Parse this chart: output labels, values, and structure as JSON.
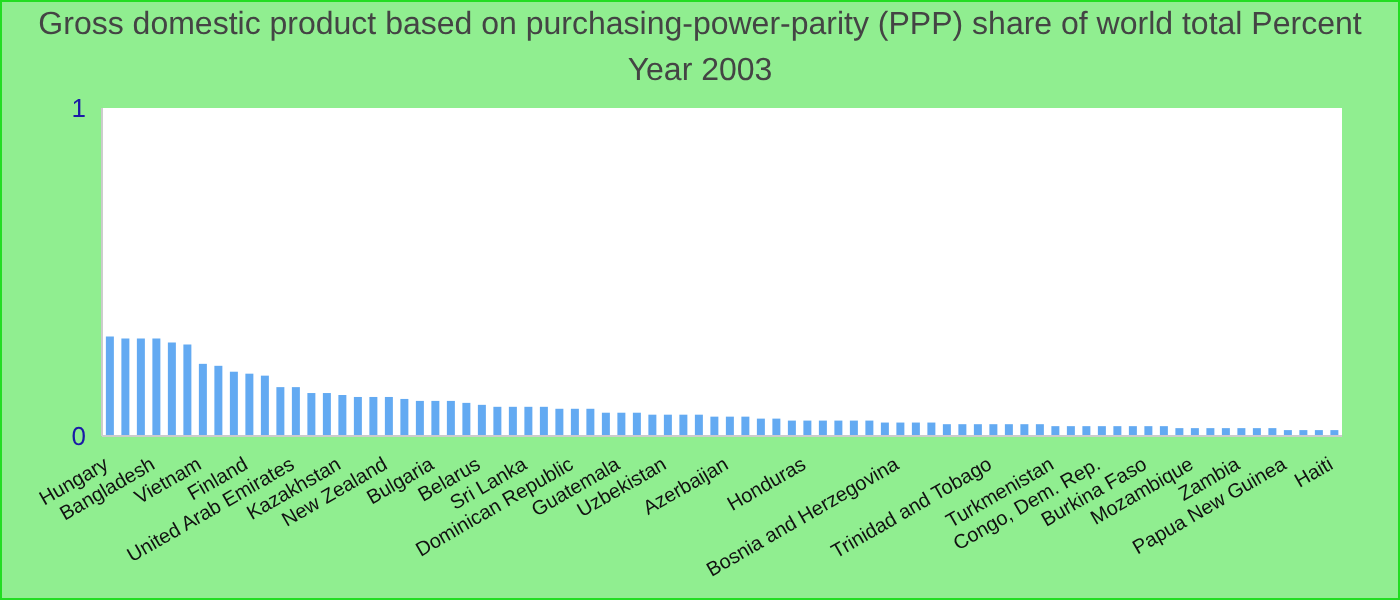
{
  "chart_data": {
    "type": "bar",
    "title": "Gross domestic product based on purchasing-power-parity (PPP) share of world total  Percent",
    "subtitle": "Year 2003",
    "categories": [
      "Hungary",
      null,
      null,
      "Bangladesh",
      null,
      null,
      "Vietnam",
      null,
      null,
      "Finland",
      null,
      null,
      "United Arab Emirates",
      null,
      null,
      "Kazakhstan",
      null,
      null,
      "New Zealand",
      null,
      null,
      "Bulgaria",
      null,
      null,
      "Belarus",
      null,
      null,
      "Sri Lanka",
      null,
      null,
      "Dominican Republic",
      null,
      null,
      "Guatemala",
      null,
      null,
      "Uzbekistan",
      null,
      null,
      null,
      "Azerbaijan",
      null,
      null,
      null,
      null,
      "Honduras",
      null,
      null,
      null,
      null,
      null,
      "Bosnia and Herzegovina",
      null,
      null,
      null,
      null,
      null,
      "Trinidad and Tobago",
      null,
      null,
      null,
      "Turkmenistan",
      null,
      null,
      "Congo, Dem. Rep.",
      null,
      null,
      "Burkina Faso",
      null,
      null,
      "Mozambique",
      null,
      null,
      "Zambia",
      null,
      null,
      "Papua New Guinea",
      null,
      null,
      "Haiti"
    ],
    "values": [
      0.303,
      0.297,
      0.297,
      0.297,
      0.285,
      0.279,
      0.22,
      0.214,
      0.196,
      0.19,
      0.184,
      0.149,
      0.149,
      0.131,
      0.131,
      0.125,
      0.119,
      0.119,
      0.119,
      0.113,
      0.107,
      0.107,
      0.107,
      0.101,
      0.095,
      0.089,
      0.089,
      0.089,
      0.089,
      0.083,
      0.083,
      0.083,
      0.071,
      0.071,
      0.071,
      0.065,
      0.065,
      0.065,
      0.065,
      0.059,
      0.059,
      0.059,
      0.053,
      0.053,
      0.047,
      0.047,
      0.047,
      0.047,
      0.047,
      0.047,
      0.041,
      0.041,
      0.041,
      0.041,
      0.036,
      0.036,
      0.036,
      0.036,
      0.036,
      0.036,
      0.036,
      0.03,
      0.03,
      0.03,
      0.03,
      0.03,
      0.03,
      0.03,
      0.03,
      0.024,
      0.024,
      0.024,
      0.024,
      0.024,
      0.024,
      0.024,
      0.018,
      0.018,
      0.018,
      0.018
    ],
    "color": "#63aaf2",
    "ylim": [
      0,
      1
    ],
    "yticks": [
      0,
      1
    ],
    "grid": false
  }
}
